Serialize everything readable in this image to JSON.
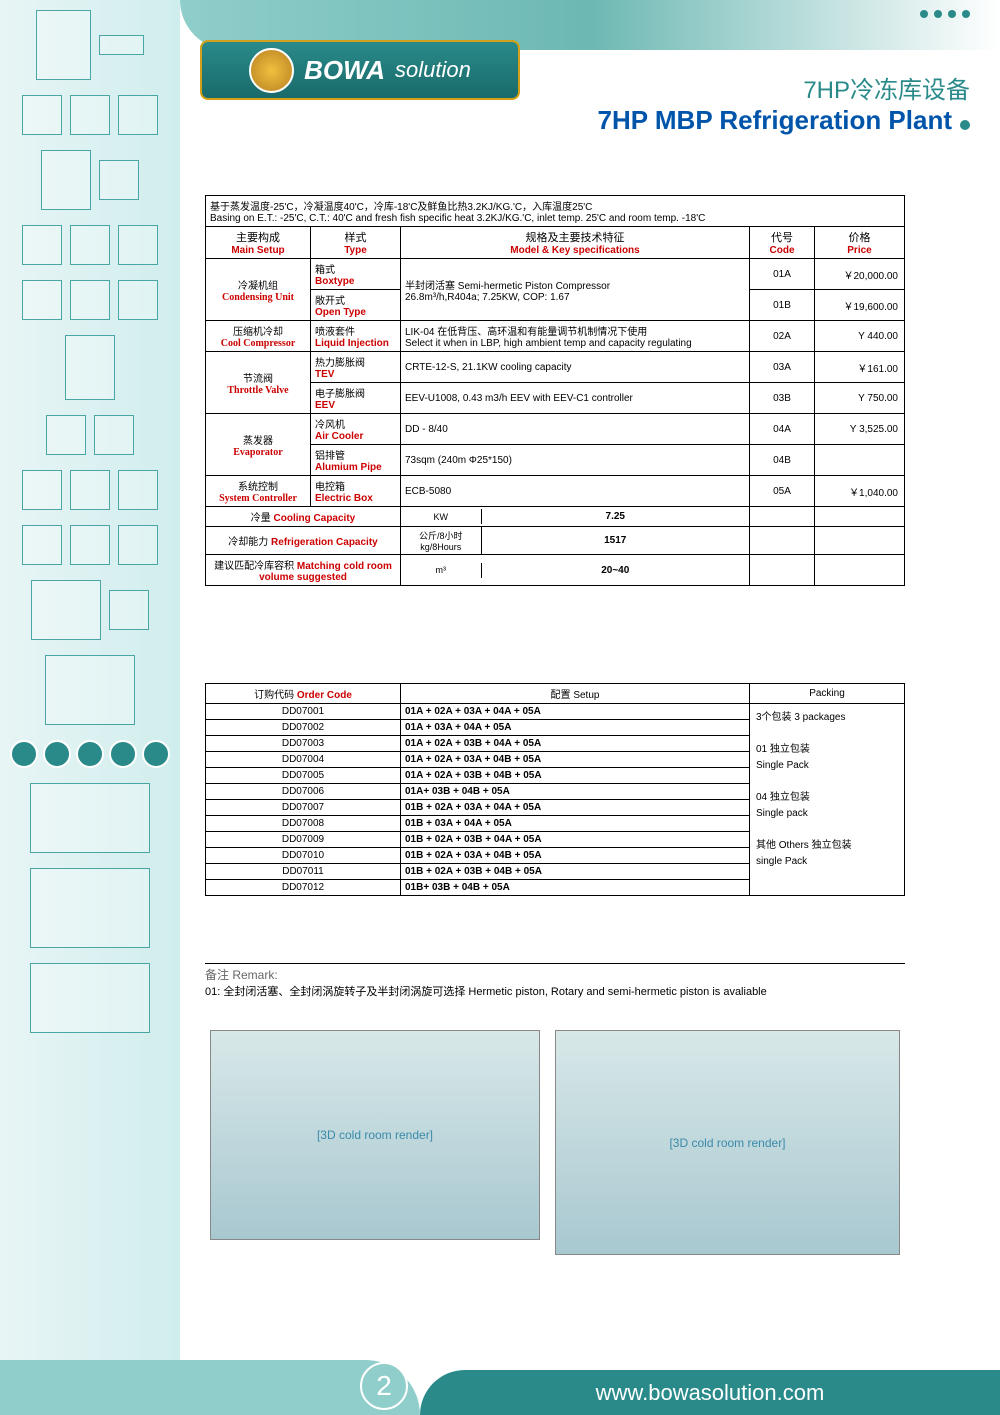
{
  "logo": {
    "main": "BOWA",
    "sub": "solution"
  },
  "title": {
    "cn": "7HP冷冻库设备",
    "en": "7HP MBP Refrigeration Plant"
  },
  "basing": {
    "cn": "基于蒸发温度-25'C，冷凝温度40'C，冷库-18'C及鲜鱼比热3.2KJ/KG.'C，入库温度25'C",
    "en": "Basing on E.T.: -25'C, C.T.: 40'C and fresh fish specific heat 3.2KJ/KG.'C, inlet temp. 25'C and room temp. -18'C"
  },
  "headers": {
    "setup": {
      "cn": "主要构成",
      "en": "Main Setup"
    },
    "type": {
      "cn": "样式",
      "en": "Type"
    },
    "spec": {
      "cn": "规格及主要技术特征",
      "en": "Model & Key specifications"
    },
    "code": {
      "cn": "代号",
      "en": "Code"
    },
    "price": {
      "cn": "价格",
      "en": "Price"
    }
  },
  "rows": [
    {
      "setup_cn": "冷凝机组",
      "setup_en": "Condensing Unit",
      "types": [
        {
          "cn": "箱式",
          "en": "Boxtype",
          "code": "01A",
          "price": "￥20,000.00"
        },
        {
          "cn": "敞开式",
          "en": "Open Type",
          "code": "01B",
          "price": "￥19,600.00"
        }
      ],
      "spec": "半封闭活塞 Semi-hermetic Piston Compressor\n26.8m³/h,R404a; 7.25KW, COP: 1.67",
      "spec_rowspan": 2
    },
    {
      "setup_cn": "压缩机冷却",
      "setup_en": "Cool Compressor",
      "types": [
        {
          "cn": "喷液套件",
          "en": "Liquid Injection",
          "code": "02A",
          "price": "Y 440.00"
        }
      ],
      "spec": "LIK-04 在低背压、高环温和有能量调节机制情况下使用\nSelect it when in LBP, high ambient temp and capacity regulating"
    },
    {
      "setup_cn": "节流阀",
      "setup_en": "Throttle Valve",
      "types": [
        {
          "cn": "热力膨胀阀",
          "en": "TEV",
          "code": "03A",
          "price": "￥161.00",
          "spec": "CRTE-12-S, 21.1KW cooling capacity"
        },
        {
          "cn": "电子膨胀阀",
          "en": "EEV",
          "code": "03B",
          "price": "Y 750.00",
          "spec": "EEV-U1008, 0.43 m3/h EEV with EEV-C1 controller"
        }
      ]
    },
    {
      "setup_cn": "蒸发器",
      "setup_en": "Evaporator",
      "types": [
        {
          "cn": "冷风机",
          "en": "Air Cooler",
          "code": "04A",
          "price": "Y 3,525.00",
          "spec": "DD - 8/40"
        },
        {
          "cn": "铝排管",
          "en": "Alumium Pipe",
          "code": "04B",
          "price": "",
          "spec": "73sqm (240m Φ25*150)"
        }
      ]
    },
    {
      "setup_cn": "系统控制",
      "setup_en": "System Controller",
      "types": [
        {
          "cn": "电控箱",
          "en": "Electric Box",
          "code": "05A",
          "price": "￥1,040.00",
          "spec": "ECB-5080"
        }
      ]
    }
  ],
  "capacity": [
    {
      "label_cn": "冷量",
      "label_en": "Cooling Capacity",
      "unit": "KW",
      "value": "7.25"
    },
    {
      "label_cn": "冷却能力",
      "label_en": "Refrigeration Capacity",
      "unit_cn": "公斤/8小时",
      "unit_en": "kg/8Hours",
      "value": "1517"
    },
    {
      "label_cn": "建议匹配冷库容积",
      "label_en": "Matching cold room volume suggested",
      "unit": "m³",
      "value": "20~40"
    }
  ],
  "order": {
    "header": {
      "code_cn": "订购代码",
      "code_en": "Order Code",
      "setup_cn": "配置",
      "setup_en": "Setup",
      "packing": "Packing"
    },
    "rows": [
      {
        "code": "DD07001",
        "setup": "01A + 02A + 03A + 04A + 05A"
      },
      {
        "code": "DD07002",
        "setup": "01A + 03A + 04A + 05A"
      },
      {
        "code": "DD07003",
        "setup": "01A + 02A + 03B + 04A + 05A"
      },
      {
        "code": "DD07004",
        "setup": "01A + 02A + 03A + 04B + 05A"
      },
      {
        "code": "DD07005",
        "setup": "01A + 02A + 03B + 04B + 05A"
      },
      {
        "code": "DD07006",
        "setup": "01A+ 03B + 04B + 05A"
      },
      {
        "code": "DD07007",
        "setup": "01B + 02A + 03A + 04A + 05A"
      },
      {
        "code": "DD07008",
        "setup": "01B + 03A + 04A + 05A"
      },
      {
        "code": "DD07009",
        "setup": "01B + 02A + 03B + 04A + 05A"
      },
      {
        "code": "DD07010",
        "setup": "01B + 02A + 03A + 04B + 05A"
      },
      {
        "code": "DD07011",
        "setup": "01B + 02A + 03B + 04B + 05A"
      },
      {
        "code": "DD07012",
        "setup": "01B+ 03B + 04B + 05A"
      }
    ],
    "packing_text": "3个包装 3 packages\n\n01 独立包装\n    Single Pack\n\n04 独立包装\n    Single pack\n\n其他 Others 独立包装\n           single Pack"
  },
  "remark": {
    "title": "备注 Remark:",
    "text": "01: 全封闭活塞、全封闭涡旋转子及半封闭涡旋可选择 Hermetic piston, Rotary and semi-hermetic piston is avaliable"
  },
  "footer": {
    "url": "www.bowasolution.com",
    "page": "2"
  }
}
